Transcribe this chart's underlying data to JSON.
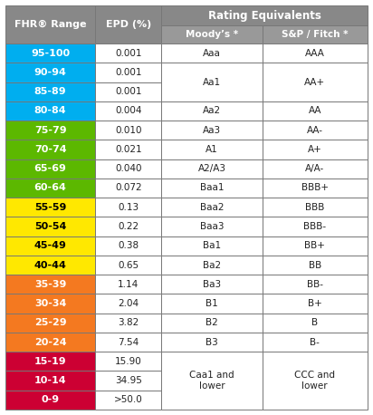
{
  "rows": [
    {
      "fhr": "95-100",
      "epd": "0.001",
      "color": "#00AEEF"
    },
    {
      "fhr": "90-94",
      "epd": "0.001",
      "color": "#00AEEF"
    },
    {
      "fhr": "85-89",
      "epd": "0.001",
      "color": "#00AEEF"
    },
    {
      "fhr": "80-84",
      "epd": "0.004",
      "color": "#00AEEF"
    },
    {
      "fhr": "75-79",
      "epd": "0.010",
      "color": "#5CB800"
    },
    {
      "fhr": "70-74",
      "epd": "0.021",
      "color": "#5CB800"
    },
    {
      "fhr": "65-69",
      "epd": "0.040",
      "color": "#5CB800"
    },
    {
      "fhr": "60-64",
      "epd": "0.072",
      "color": "#5CB800"
    },
    {
      "fhr": "55-59",
      "epd": "0.13",
      "color": "#FFE800"
    },
    {
      "fhr": "50-54",
      "epd": "0.22",
      "color": "#FFE800"
    },
    {
      "fhr": "45-49",
      "epd": "0.38",
      "color": "#FFE800"
    },
    {
      "fhr": "40-44",
      "epd": "0.65",
      "color": "#FFE800"
    },
    {
      "fhr": "35-39",
      "epd": "1.14",
      "color": "#F47920"
    },
    {
      "fhr": "30-34",
      "epd": "2.04",
      "color": "#F47920"
    },
    {
      "fhr": "25-29",
      "epd": "3.82",
      "color": "#F47920"
    },
    {
      "fhr": "20-24",
      "epd": "7.54",
      "color": "#F47920"
    },
    {
      "fhr": "15-19",
      "epd": "15.90",
      "color": "#CC0033"
    },
    {
      "fhr": "10-14",
      "epd": "34.95",
      "color": "#CC0033"
    },
    {
      "fhr": "0-9",
      "epd": ">50.0",
      "color": "#CC0033"
    }
  ],
  "moodys_merged": [
    [
      0,
      1,
      "Aaa"
    ],
    [
      1,
      2,
      "Aa1"
    ],
    [
      3,
      1,
      "Aa2"
    ],
    [
      4,
      1,
      "Aa3"
    ],
    [
      5,
      1,
      "A1"
    ],
    [
      6,
      1,
      "A2/A3"
    ],
    [
      7,
      1,
      "Baa1"
    ],
    [
      8,
      1,
      "Baa2"
    ],
    [
      9,
      1,
      "Baa3"
    ],
    [
      10,
      1,
      "Ba1"
    ],
    [
      11,
      1,
      "Ba2"
    ],
    [
      12,
      1,
      "Ba3"
    ],
    [
      13,
      1,
      "B1"
    ],
    [
      14,
      1,
      "B2"
    ],
    [
      15,
      1,
      "B3"
    ],
    [
      16,
      3,
      "Caa1 and\nlower"
    ]
  ],
  "sp_merged": [
    [
      0,
      1,
      "AAA"
    ],
    [
      1,
      2,
      "AA+"
    ],
    [
      3,
      1,
      "AA"
    ],
    [
      4,
      1,
      "AA-"
    ],
    [
      5,
      1,
      "A+"
    ],
    [
      6,
      1,
      "A/A-"
    ],
    [
      7,
      1,
      "BBB+"
    ],
    [
      8,
      1,
      "BBB"
    ],
    [
      9,
      1,
      "BBB-"
    ],
    [
      10,
      1,
      "BB+"
    ],
    [
      11,
      1,
      "BB"
    ],
    [
      12,
      1,
      "BB-"
    ],
    [
      13,
      1,
      "B+"
    ],
    [
      14,
      1,
      "B"
    ],
    [
      15,
      1,
      "B-"
    ],
    [
      16,
      3,
      "CCC and\nlower"
    ]
  ],
  "header_bg": "#888888",
  "col_sub_bg": "#999999",
  "border_color": "#777777",
  "title_main": "Rating Equivalents",
  "col1_header": "FHR® Range",
  "col2_header": "EPD (%)",
  "col3_header": "Moody’s *",
  "col4_header": "S&P / Fitch *",
  "fig_width": 4.12,
  "fig_height": 4.58,
  "dpi": 100
}
